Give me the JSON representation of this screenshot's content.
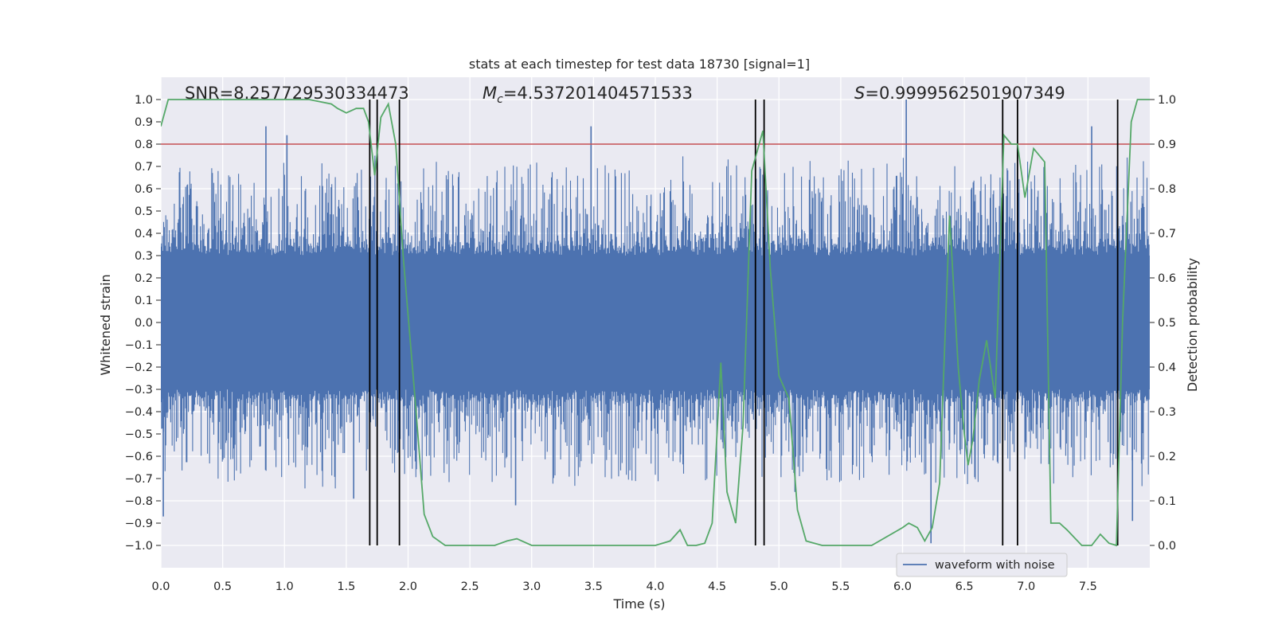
{
  "chart_data": {
    "type": "line",
    "title": "stats at each timestep for test data 18730 [signal=1]",
    "xlabel": "Time (s)",
    "ylabel": "Whitened strain",
    "ylabel_right": "Detection probability",
    "xlim": [
      0,
      8
    ],
    "ylim": [
      -1.1,
      1.1
    ],
    "ylim_right": [
      -0.05,
      1.05
    ],
    "x_ticks": [
      0.0,
      0.5,
      1.0,
      1.5,
      2.0,
      2.5,
      3.0,
      3.5,
      4.0,
      4.5,
      5.0,
      5.5,
      6.0,
      6.5,
      7.0,
      7.5
    ],
    "x_tick_labels": [
      "0.0",
      "0.5",
      "1.0",
      "1.5",
      "2.0",
      "2.5",
      "3.0",
      "3.5",
      "4.0",
      "4.5",
      "5.0",
      "5.5",
      "6.0",
      "6.5",
      "7.0",
      "7.5"
    ],
    "y_ticks": [
      -1.0,
      -0.9,
      -0.8,
      -0.7,
      -0.6,
      -0.5,
      -0.4,
      -0.3,
      -0.2,
      -0.1,
      0.0,
      0.1,
      0.2,
      0.3,
      0.4,
      0.5,
      0.6,
      0.7,
      0.8,
      0.9,
      1.0
    ],
    "y_tick_labels": [
      "−1.0",
      "−0.9",
      "−0.8",
      "−0.7",
      "−0.6",
      "−0.5",
      "−0.4",
      "−0.3",
      "−0.2",
      "−0.1",
      "0.0",
      "0.1",
      "0.2",
      "0.3",
      "0.4",
      "0.5",
      "0.6",
      "0.7",
      "0.8",
      "0.9",
      "1.0"
    ],
    "y_right_ticks": [
      0.0,
      0.1,
      0.2,
      0.3,
      0.4,
      0.5,
      0.6,
      0.7,
      0.8,
      0.9,
      1.0
    ],
    "y_right_tick_labels": [
      "0.0",
      "0.1",
      "0.2",
      "0.3",
      "0.4",
      "0.5",
      "0.6",
      "0.7",
      "0.8",
      "0.9",
      "1.0"
    ],
    "grid": true,
    "annotations": {
      "snr": "SNR=8.257729530334473",
      "mc_symbol": "M",
      "mc_sub": "c",
      "mc_value": "=4.537201404571533",
      "s_symbol": "S",
      "s_value": "=0.9999562501907349"
    },
    "threshold": {
      "value": 0.8,
      "color": "#c44e52"
    },
    "vertical_lines_s": [
      1.69,
      1.75,
      1.93,
      4.81,
      4.88,
      6.81,
      6.93,
      7.74
    ],
    "legend": {
      "label": "waveform with noise",
      "location": "lower-right"
    },
    "series": [
      {
        "name": "waveform with noise",
        "axis": "left",
        "color": "#4c72b0",
        "kind": "noise-envelope",
        "core_amplitude": 0.3,
        "typical_peak_amplitude": 0.55,
        "notable_peaks": [
          {
            "x": 0.02,
            "y": -0.87
          },
          {
            "x": 0.85,
            "y": 0.88
          },
          {
            "x": 1.02,
            "y": 0.84
          },
          {
            "x": 1.56,
            "y": -0.79
          },
          {
            "x": 2.87,
            "y": -0.82
          },
          {
            "x": 3.48,
            "y": 0.88
          },
          {
            "x": 5.13,
            "y": -0.76
          },
          {
            "x": 6.03,
            "y": 1.0
          },
          {
            "x": 6.23,
            "y": -0.99
          },
          {
            "x": 7.53,
            "y": 0.88
          },
          {
            "x": 7.86,
            "y": -0.89
          }
        ]
      },
      {
        "name": "detection probability",
        "axis": "right",
        "color": "#55a868",
        "x": [
          0.0,
          0.06,
          0.2,
          0.4,
          0.6,
          0.8,
          1.0,
          1.2,
          1.38,
          1.43,
          1.5,
          1.58,
          1.64,
          1.68,
          1.73,
          1.78,
          1.84,
          1.9,
          1.96,
          2.05,
          2.13,
          2.2,
          2.3,
          2.5,
          2.7,
          2.8,
          2.88,
          3.0,
          3.3,
          3.5,
          3.7,
          4.0,
          4.12,
          4.2,
          4.26,
          4.33,
          4.4,
          4.46,
          4.53,
          4.58,
          4.65,
          4.71,
          4.78,
          4.82,
          4.87,
          4.93,
          5.0,
          5.08,
          5.15,
          5.22,
          5.35,
          5.6,
          5.75,
          6.0,
          6.05,
          6.12,
          6.18,
          6.24,
          6.3,
          6.38,
          6.45,
          6.5,
          6.53,
          6.57,
          6.62,
          6.68,
          6.75,
          6.82,
          6.88,
          6.93,
          6.99,
          7.06,
          7.15,
          7.2,
          7.27,
          7.33,
          7.45,
          7.53,
          7.6,
          7.67,
          7.73,
          7.78,
          7.85,
          7.9,
          8.0
        ],
        "y": [
          0.94,
          1.0,
          1.0,
          1.0,
          1.0,
          1.0,
          1.0,
          1.0,
          0.99,
          0.98,
          0.97,
          0.98,
          0.98,
          0.95,
          0.83,
          0.96,
          0.99,
          0.9,
          0.65,
          0.35,
          0.07,
          0.02,
          0.0,
          0.0,
          0.0,
          0.01,
          0.015,
          0.0,
          0.0,
          0.0,
          0.0,
          0.0,
          0.01,
          0.035,
          0.0,
          0.0,
          0.005,
          0.05,
          0.41,
          0.12,
          0.05,
          0.27,
          0.84,
          0.88,
          0.93,
          0.62,
          0.38,
          0.33,
          0.08,
          0.01,
          0.0,
          0.0,
          0.0,
          0.04,
          0.05,
          0.04,
          0.01,
          0.04,
          0.14,
          0.74,
          0.4,
          0.25,
          0.18,
          0.24,
          0.37,
          0.46,
          0.33,
          0.92,
          0.9,
          0.9,
          0.78,
          0.89,
          0.86,
          0.05,
          0.05,
          0.035,
          0.0,
          0.0,
          0.025,
          0.005,
          0.0,
          0.5,
          0.95,
          1.0,
          1.0
        ]
      }
    ]
  }
}
